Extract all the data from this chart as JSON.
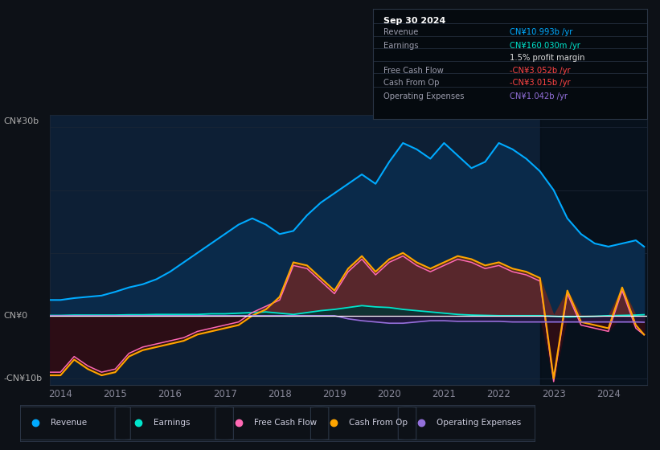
{
  "bg_color": "#0d1117",
  "plot_bg": "#0d1f35",
  "dark_right_bg": "#070d14",
  "ylabel_30b": "CN¥30b",
  "ylabel_0": "CN¥0",
  "ylabel_neg10b": "-CN¥10b",
  "x_labels": [
    "2014",
    "2015",
    "2016",
    "2017",
    "2018",
    "2019",
    "2020",
    "2021",
    "2022",
    "2023",
    "2024"
  ],
  "legend_items": [
    {
      "label": "Revenue",
      "color": "#00aaff"
    },
    {
      "label": "Earnings",
      "color": "#00e5cc"
    },
    {
      "label": "Free Cash Flow",
      "color": "#ff69b4"
    },
    {
      "label": "Cash From Op",
      "color": "#ffa500"
    },
    {
      "label": "Operating Expenses",
      "color": "#9370db"
    }
  ],
  "info_box": {
    "date": "Sep 30 2024",
    "rows": [
      {
        "label": "Revenue",
        "value": "CN¥10.993b /yr",
        "value_color": "#00aaff"
      },
      {
        "label": "Earnings",
        "value": "CN¥160.030m /yr",
        "value_color": "#00e5cc"
      },
      {
        "label": "",
        "value": "1.5% profit margin",
        "value_color": "#dddddd"
      },
      {
        "label": "Free Cash Flow",
        "value": "-CN¥3.052b /yr",
        "value_color": "#ff4444"
      },
      {
        "label": "Cash From Op",
        "value": "-CN¥3.015b /yr",
        "value_color": "#ff4444"
      },
      {
        "label": "Operating Expenses",
        "value": "CN¥1.042b /yr",
        "value_color": "#9370db"
      }
    ]
  },
  "years": [
    2013.8,
    2014.0,
    2014.25,
    2014.5,
    2014.75,
    2015.0,
    2015.25,
    2015.5,
    2015.75,
    2016.0,
    2016.25,
    2016.5,
    2016.75,
    2017.0,
    2017.25,
    2017.5,
    2017.75,
    2018.0,
    2018.25,
    2018.5,
    2018.75,
    2019.0,
    2019.25,
    2019.5,
    2019.75,
    2020.0,
    2020.25,
    2020.5,
    2020.75,
    2021.0,
    2021.25,
    2021.5,
    2021.75,
    2022.0,
    2022.25,
    2022.5,
    2022.75,
    2023.0,
    2023.25,
    2023.5,
    2023.75,
    2024.0,
    2024.25,
    2024.5,
    2024.65
  ],
  "revenue": [
    2.5,
    2.5,
    2.8,
    3.0,
    3.2,
    3.8,
    4.5,
    5.0,
    5.8,
    7.0,
    8.5,
    10.0,
    11.5,
    13.0,
    14.5,
    15.5,
    14.5,
    13.0,
    13.5,
    16.0,
    18.0,
    19.5,
    21.0,
    22.5,
    21.0,
    24.5,
    27.5,
    26.5,
    25.0,
    27.5,
    25.5,
    23.5,
    24.5,
    27.5,
    26.5,
    25.0,
    23.0,
    20.0,
    15.5,
    13.0,
    11.5,
    11.0,
    11.5,
    12.0,
    11.0
  ],
  "earnings": [
    0.05,
    0.05,
    0.1,
    0.1,
    0.1,
    0.1,
    0.15,
    0.15,
    0.2,
    0.2,
    0.2,
    0.2,
    0.3,
    0.3,
    0.4,
    0.5,
    0.6,
    0.4,
    0.2,
    0.5,
    0.8,
    1.0,
    1.3,
    1.6,
    1.4,
    1.3,
    1.0,
    0.8,
    0.6,
    0.4,
    0.2,
    0.1,
    0.05,
    0.0,
    0.0,
    0.0,
    0.0,
    -0.1,
    -0.2,
    -0.15,
    -0.1,
    0.0,
    0.05,
    0.1,
    0.16
  ],
  "cash_from_op": [
    -9.5,
    -9.5,
    -7.0,
    -8.5,
    -9.5,
    -9.0,
    -6.5,
    -5.5,
    -5.0,
    -4.5,
    -4.0,
    -3.0,
    -2.5,
    -2.0,
    -1.5,
    0.0,
    1.0,
    3.0,
    8.5,
    8.0,
    6.0,
    4.0,
    7.5,
    9.5,
    7.0,
    9.0,
    10.0,
    8.5,
    7.5,
    8.5,
    9.5,
    9.0,
    8.0,
    8.5,
    7.5,
    7.0,
    6.0,
    -10.0,
    4.0,
    -1.0,
    -1.5,
    -2.0,
    4.5,
    -1.5,
    -3.015
  ],
  "free_cash_flow": [
    -9.0,
    -9.0,
    -6.5,
    -8.0,
    -9.0,
    -8.5,
    -6.0,
    -5.0,
    -4.5,
    -4.0,
    -3.5,
    -2.5,
    -2.0,
    -1.5,
    -1.0,
    0.5,
    1.5,
    2.5,
    8.0,
    7.5,
    5.5,
    3.5,
    7.0,
    9.0,
    6.5,
    8.5,
    9.5,
    8.0,
    7.0,
    8.0,
    9.0,
    8.5,
    7.5,
    8.0,
    7.0,
    6.5,
    5.5,
    -10.5,
    3.5,
    -1.5,
    -2.0,
    -2.5,
    4.0,
    -2.0,
    -3.052
  ],
  "operating_expenses": [
    0.0,
    0.0,
    0.0,
    0.0,
    0.0,
    0.0,
    0.0,
    0.0,
    0.0,
    0.0,
    0.0,
    0.0,
    0.0,
    0.0,
    0.0,
    0.0,
    0.0,
    0.0,
    0.0,
    0.0,
    0.0,
    0.0,
    -0.5,
    -0.8,
    -1.0,
    -1.2,
    -1.2,
    -1.0,
    -0.8,
    -0.8,
    -0.9,
    -0.9,
    -0.9,
    -0.9,
    -1.0,
    -1.0,
    -1.0,
    -1.0,
    -1.0,
    -1.0,
    -1.0,
    -1.0,
    -1.0,
    -1.0,
    -1.042
  ]
}
